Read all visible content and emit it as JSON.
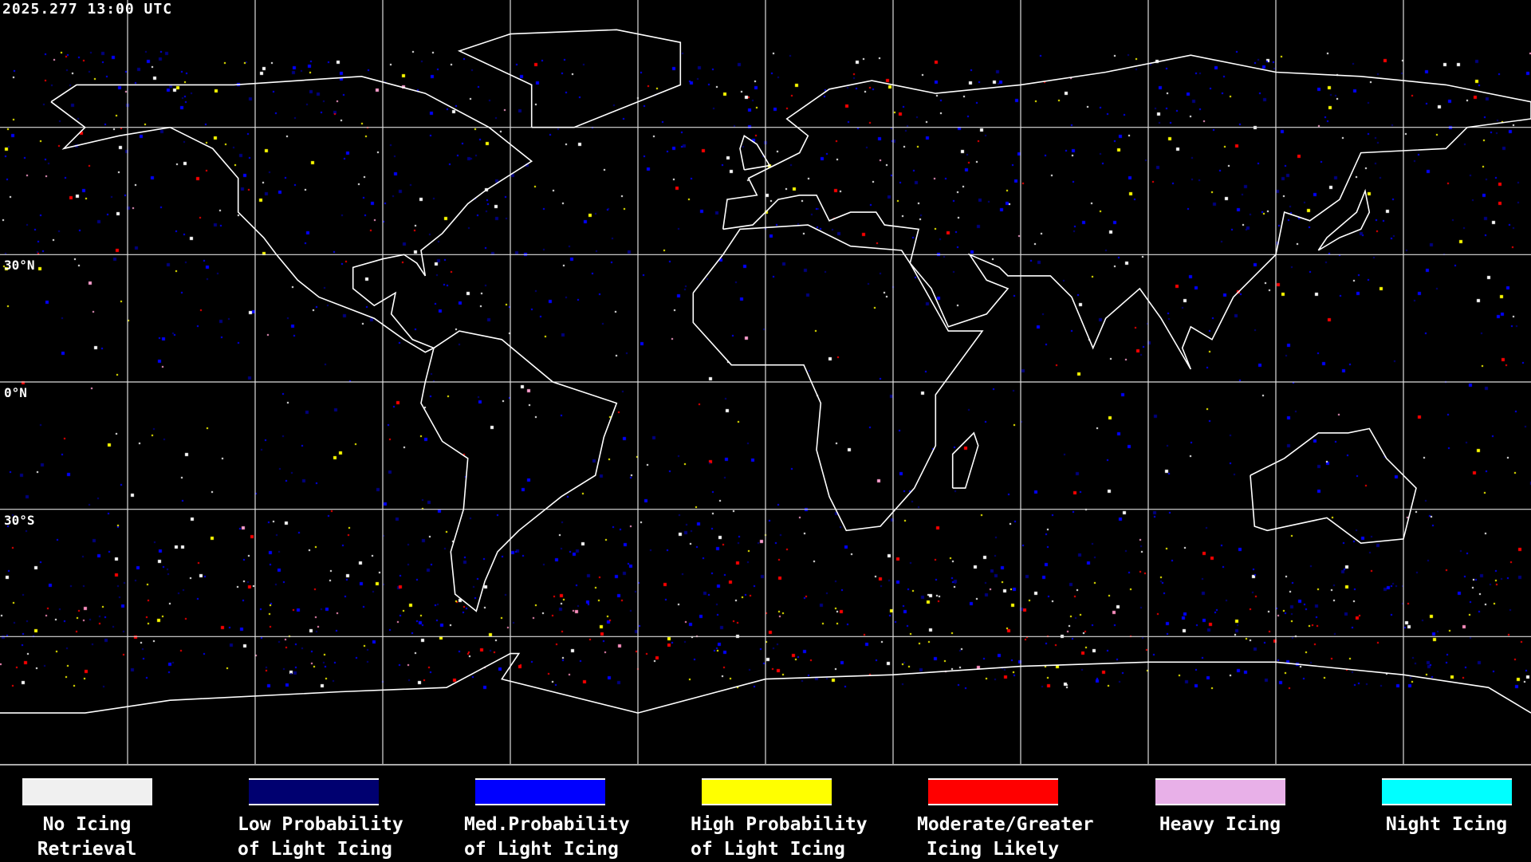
{
  "header": {
    "timestamp": "2025.277 13:00 UTC"
  },
  "map": {
    "projection": "equirectangular",
    "grid_spacing_degrees": 30,
    "lat_labels": [
      "30°N",
      "0°N",
      "30°S"
    ]
  },
  "legend": [
    {
      "line1": "No Icing",
      "line2": "Retrieval",
      "color": "#f0f0f0"
    },
    {
      "line1": "Low Probability",
      "line2": "of Light Icing",
      "color": "#000070"
    },
    {
      "line1": "Med.Probability",
      "line2": "of Light Icing",
      "color": "#0000ff"
    },
    {
      "line1": "High Probability",
      "line2": "of Light Icing",
      "color": "#ffff00"
    },
    {
      "line1": "Moderate/Greater",
      "line2": "Icing Likely",
      "color": "#ff0000"
    },
    {
      "line1": "Heavy Icing",
      "line2": "",
      "color": "#e8b0e8"
    },
    {
      "line1": "Night Icing",
      "line2": "",
      "color": "#00ffff"
    }
  ]
}
